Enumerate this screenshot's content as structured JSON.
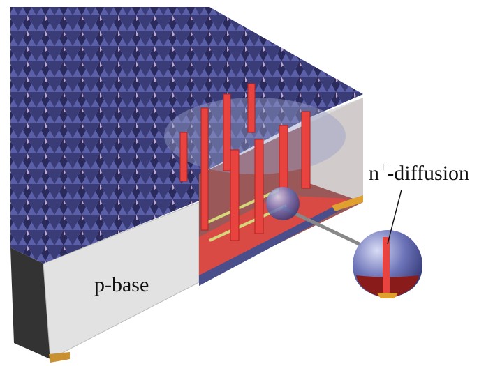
{
  "labels": {
    "p_base": "p-base",
    "n_diffusion": {
      "base": "n",
      "superscript": "+",
      "rest": "-diffusion"
    }
  }
}
